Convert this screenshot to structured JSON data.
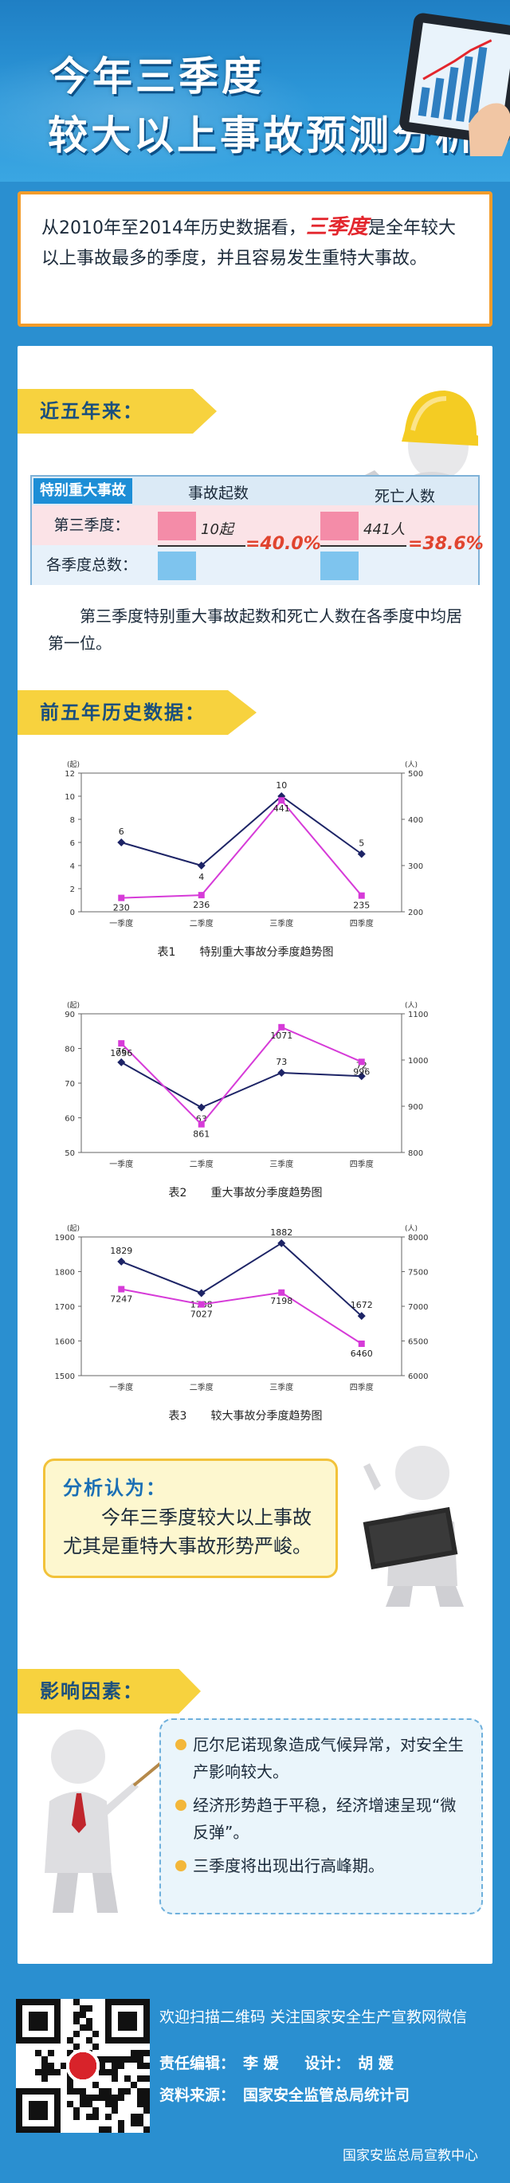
{
  "header": {
    "title_line1": "今年三季度",
    "title_line2": "较大以上事故预测分析"
  },
  "intro": {
    "before": "从2010年至2014年历史数据看，",
    "highlight": "三季度",
    "after": "是全年较大以上事故最多的季度，并且容易发生重特大事故。"
  },
  "section1": {
    "ribbon": "近五年来：",
    "table": {
      "tag": "特别重大事故",
      "col_accidents": "事故起数",
      "col_deaths": "死亡人数",
      "row_q3": "第三季度：",
      "row_total": "各季度总数：",
      "q3_accidents": "10起",
      "q3_deaths": "441人",
      "pct_accidents": "=40.0%",
      "pct_deaths": "=38.6%"
    },
    "note": "第三季度特别重大事故起数和死亡人数在各季度中均居第一位。"
  },
  "section2": {
    "ribbon": "前五年历史数据："
  },
  "chart_data": [
    {
      "type": "line",
      "caption_num": "表1",
      "caption": "特别重大事故分季度趋势图",
      "left_unit": "(起)",
      "right_unit": "(人)",
      "categories": [
        "一季度",
        "二季度",
        "三季度",
        "四季度"
      ],
      "left_ylim": [
        0,
        12
      ],
      "left_ticks": [
        0,
        2,
        4,
        6,
        8,
        10,
        12
      ],
      "right_ylim": [
        200,
        500
      ],
      "right_ticks": [
        200,
        300,
        400,
        500
      ],
      "series": [
        {
          "axis": "left",
          "color": "#1d2466",
          "values": [
            6,
            4,
            10,
            5
          ]
        },
        {
          "axis": "right",
          "color": "#d63bd8",
          "values": [
            230,
            236,
            441,
            235
          ]
        }
      ]
    },
    {
      "type": "line",
      "caption_num": "表2",
      "caption": "重大事故分季度趋势图",
      "left_unit": "(起)",
      "right_unit": "(人)",
      "categories": [
        "一季度",
        "二季度",
        "三季度",
        "四季度"
      ],
      "left_ylim": [
        50,
        90
      ],
      "left_ticks": [
        50,
        60,
        70,
        80,
        90
      ],
      "right_ylim": [
        800,
        1100
      ],
      "right_ticks": [
        800,
        900,
        1000,
        1100
      ],
      "series": [
        {
          "axis": "left",
          "color": "#1d2466",
          "values": [
            76,
            63,
            73,
            72
          ]
        },
        {
          "axis": "right",
          "color": "#d63bd8",
          "values": [
            1036,
            861,
            1071,
            996
          ]
        }
      ]
    },
    {
      "type": "line",
      "caption_num": "表3",
      "caption": "较大事故分季度趋势图",
      "left_unit": "(起)",
      "right_unit": "(人)",
      "categories": [
        "一季度",
        "二季度",
        "三季度",
        "四季度"
      ],
      "left_ylim": [
        1500,
        1900
      ],
      "left_ticks": [
        1500,
        1600,
        1700,
        1800,
        1900
      ],
      "right_ylim": [
        6000,
        8000
      ],
      "right_ticks": [
        6000,
        6500,
        7000,
        7500,
        8000
      ],
      "series": [
        {
          "axis": "left",
          "color": "#1d2466",
          "values": [
            1829,
            1738,
            1882,
            1672
          ]
        },
        {
          "axis": "right",
          "color": "#d63bd8",
          "values": [
            7247,
            7027,
            7198,
            6460
          ]
        }
      ]
    }
  ],
  "analysis": {
    "title": "分析认为：",
    "body": "今年三季度较大以上事故尤其是重特大事故形势严峻。"
  },
  "section3": {
    "ribbon": "影响因素：",
    "items": [
      "厄尔尼诺现象造成气候异常，对安全生产影响较大。",
      "经济形势趋于平稳，经济增速呈现“微反弹”。",
      "三季度将出现出行高峰期。"
    ]
  },
  "footer": {
    "scan": "欢迎扫描二维码  关注国家安全生产宣教网微信",
    "editor_label": "责任编辑：",
    "editor": "李 媛",
    "design_label": "设计：",
    "designer": "胡 媛",
    "source_label": "资料来源：",
    "source": "国家安全监管总局统计司",
    "org": "国家安监总局宣教中心"
  },
  "colors": {
    "background": "#2a8fd0",
    "ribbon": "#f7d23e",
    "highlight": "#e3262d",
    "series_accidents": "#1d2466",
    "series_deaths": "#d63bd8"
  }
}
